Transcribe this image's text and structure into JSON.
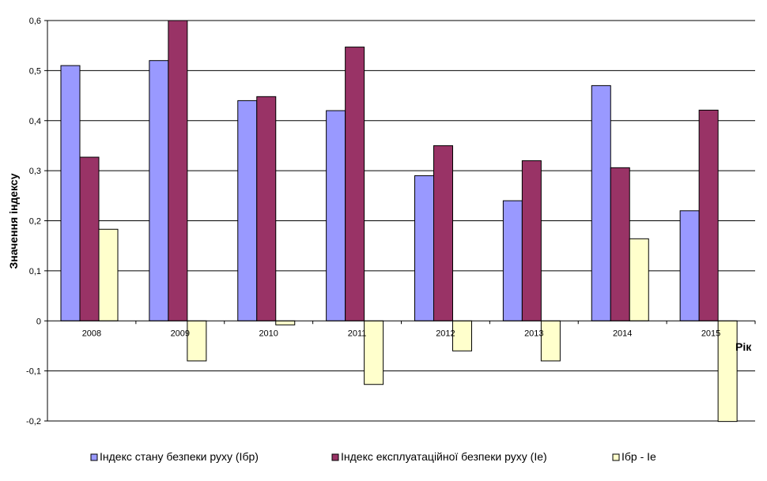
{
  "chart_data": {
    "type": "bar",
    "title": "",
    "ylabel": "Значення індексу",
    "xlabel": "Рік",
    "ylim": [
      -0.2,
      0.6
    ],
    "yticks": [
      "0,6",
      "0,5",
      "0,4",
      "0,3",
      "0,2",
      "0,1",
      "0",
      "-0,1",
      "-0,2"
    ],
    "ytick_values": [
      0.6,
      0.5,
      0.4,
      0.3,
      0.2,
      0.1,
      0,
      -0.1,
      -0.2
    ],
    "grid": true,
    "legend_position": "bottom",
    "categories": [
      "2008",
      "2009",
      "2010",
      "2011",
      "2012",
      "2013",
      "2014",
      "2015"
    ],
    "series": [
      {
        "name": "Індекс стану безпеки руху (Ібр)",
        "color": "#9999ff",
        "values": [
          0.51,
          0.52,
          0.44,
          0.42,
          0.29,
          0.24,
          0.47,
          0.22
        ]
      },
      {
        "name": "Індекс експлуатаційної безпеки руху (Іе)",
        "color": "#993366",
        "values": [
          0.327,
          0.6,
          0.448,
          0.547,
          0.35,
          0.32,
          0.306,
          0.421
        ]
      },
      {
        "name": "Ібр - Іе",
        "color": "#ffffcc",
        "values": [
          0.183,
          -0.08,
          -0.008,
          -0.127,
          -0.06,
          -0.08,
          0.164,
          -0.201
        ]
      }
    ]
  }
}
